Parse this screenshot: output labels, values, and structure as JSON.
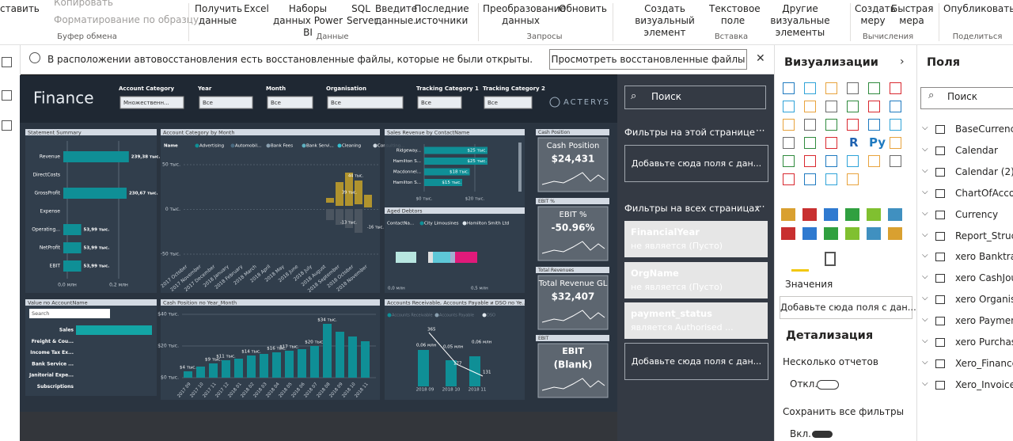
{
  "ribbon": {
    "groups": [
      {
        "name": "Буфер обмена",
        "items": [
          "ставить",
          "Копировать",
          "Форматирование по образцу"
        ]
      },
      {
        "name": "Данные",
        "items": [
          "Получить данные",
          "Excel",
          "Наборы данных Power BI",
          "SQL Server",
          "Введите данные.",
          "Последние источники"
        ]
      },
      {
        "name": "Запросы",
        "items": [
          "Преобразование данных",
          "Обновить"
        ]
      },
      {
        "name": "Вставка",
        "items": [
          "Создать визуальный элемент",
          "Текстовое поле",
          "Другие визуальные элементы"
        ]
      },
      {
        "name": "Вычисления",
        "items": [
          "Создать меру",
          "Быстрая мера"
        ]
      },
      {
        "name": "Поделиться",
        "items": [
          "Опубликовать"
        ]
      }
    ]
  },
  "notification": {
    "text": "В расположении автовосстановления есть восстановленные файлы, которые не были открыты.",
    "button": "Просмотреть восстановленные файлы"
  },
  "report": {
    "title": "Finance",
    "logo": "ACTERYS",
    "slicers": [
      {
        "label": "Account Category",
        "value": "Множественн..."
      },
      {
        "label": "Year",
        "value": "Все"
      },
      {
        "label": "Month",
        "value": "Все"
      },
      {
        "label": "Organisation",
        "value": "Все"
      },
      {
        "label": "Tracking Category 1",
        "value": "Все"
      },
      {
        "label": "Tracking Category 2",
        "value": "Все"
      }
    ],
    "statement": {
      "title": "Statement Summary",
      "categories": [
        "Revenue",
        "DirectCosts",
        "GrossProfit",
        "Expense",
        "Operating...",
        "NetProfit",
        "EBIT"
      ],
      "values": [
        239.38,
        null,
        230.67,
        null,
        53.99,
        53.99,
        53.99
      ],
      "value_labels": [
        "239,38 тыс.",
        null,
        "230,67 тыс.",
        null,
        "53,99 тыс.",
        "53,99 тыс.",
        "53,99 тыс."
      ],
      "xlim": [
        0,
        260
      ],
      "xticks": [
        {
          "value": 0,
          "label": "0,0 млн"
        },
        {
          "value": 200,
          "label": "0,2 млн"
        }
      ]
    },
    "accountMonth": {
      "title": "Account Category by Month",
      "legend": [
        "Name",
        "Advertising",
        "Automobil...",
        "Bank Fees",
        "Bank Servi...",
        "Cleaning",
        "Consulting..."
      ],
      "yticks": [
        "50 тыс.",
        "0 тыс.",
        "-50 тыс."
      ],
      "labels": [
        "44 тыс.",
        "39 тыс.",
        "-13 тыс.",
        "-16 тыс."
      ],
      "categories": [
        "2017 October",
        "2017 November",
        "2017 December",
        "2018 January",
        "2018 February",
        "2018 March",
        "2018 April",
        "2018 May",
        "2018 June",
        "2018 July",
        "2018 August",
        "2018 September",
        "2018 October",
        "2018 November"
      ]
    },
    "sales": {
      "title": "Sales Revenue by ContactName",
      "categories": [
        "Ridgeway...",
        "Hamilton S...",
        "Macdonnel...",
        "Hamilton S..."
      ],
      "values": [
        25,
        25,
        18,
        15
      ],
      "value_labels": [
        "$25 тыс.",
        "$25 тыс.",
        "$18 тыс.",
        "$15 тыс."
      ],
      "xticks": [
        {
          "value": 0,
          "label": "$0 тыс."
        },
        {
          "value": 20,
          "label": "$20 тыс."
        }
      ]
    },
    "aged": {
      "title": "Aged Debtors",
      "legend": [
        "ContactNa...",
        "City Limousines",
        "Hamilton Smith Ltd"
      ],
      "axis": [
        "0,0 млн",
        "0,5 млн"
      ]
    },
    "valueAccount": {
      "title": "Value по AccountName",
      "search": "Search",
      "rows": [
        "Sales",
        "Freight & Cou...",
        "Income Tax Ex...",
        "Bank Service ...",
        "Janitorial Expe...",
        "Subscriptions"
      ]
    },
    "cash": {
      "title": "Cash Position по Year_Month",
      "categories": [
        "2017 09",
        "2017 10",
        "2017 11",
        "2017 12",
        "2018 01",
        "2018 02",
        "2018 03",
        "2018 04",
        "2018 05",
        "2018 06",
        "2018 07",
        "2018 08",
        "2018 09",
        "2018 10",
        "2018 11"
      ],
      "values": [
        4,
        7,
        9,
        11,
        12,
        14,
        15,
        16,
        17,
        18,
        20,
        34,
        29,
        26,
        23
      ],
      "value_labels": [
        "$4 тыс.",
        null,
        "$9 тыс.",
        "$11 тыс.",
        null,
        "$14 тыс.",
        null,
        "$16 тыс.",
        "$17 тыс.",
        null,
        "$20 тыс.",
        "$34 тыс.",
        null,
        null,
        null
      ],
      "ylim": [
        0,
        40
      ],
      "yticks": [
        {
          "value": 0,
          "label": "$0 тыс."
        },
        {
          "value": 20,
          "label": "$20 тыс."
        },
        {
          "value": 40,
          "label": "$40 тыс."
        }
      ]
    },
    "ar": {
      "title": "Accounts Receivable, Accounts Payable и DSO по Ye...",
      "legend": [
        "Accounts Receivable",
        "Accounts Payable",
        "DSO"
      ],
      "labels": [
        "0,06 млн",
        "365",
        "0,05 млн",
        "177",
        "0,06 млн",
        "131"
      ],
      "categories": [
        "2018 09",
        "2018 10",
        "2018 11"
      ]
    },
    "kpis": [
      {
        "header": "Cash Position",
        "title": "Cash Position",
        "value": "$24,431"
      },
      {
        "header": "EBIT %",
        "title": "EBIT %",
        "value": "-50.96%"
      },
      {
        "header": "Total Revenues",
        "title": "Total Revenue GL",
        "value": "$32,407"
      },
      {
        "header": "EBIT",
        "title": "EBIT",
        "value": "(Blank)"
      }
    ]
  },
  "filters": {
    "search": "Поиск",
    "pageTitle": "Фильтры на этой странице",
    "pageDrop": "Добавьте сюда поля с дан...",
    "allTitle": "Фильтры на всех страницах",
    "cards": [
      {
        "name": "FinancialYear",
        "state": "не является (Пусто)"
      },
      {
        "name": "OrgName",
        "state": "не является (Пусто)"
      },
      {
        "name": "payment_status",
        "state": "является Authorised ..."
      }
    ],
    "allDrop": "Добавьте сюда поля с дан..."
  },
  "visualizations": {
    "title": "Визуализации",
    "icons": [
      "R",
      "Py"
    ],
    "valuesLabel": "Значения",
    "valuesDrop": "Добавьте сюда поля с дан...",
    "drill": "Детализация",
    "multi": "Несколько отчетов",
    "multiState": "Откл.",
    "keep": "Сохранить все фильтры",
    "keepState": "Вкл."
  },
  "fields": {
    "title": "Поля",
    "search": "Поиск",
    "tables": [
      "BaseCurrency",
      "Calendar",
      "Calendar (2)",
      "ChartOfAccounts",
      "Currency",
      "Report_Structure",
      "xero Banktransactions",
      "xero CashJournal",
      "xero Organisation",
      "xero Payments",
      "xero Purchases",
      "Xero_Finance",
      "Xero_Invoices"
    ]
  }
}
